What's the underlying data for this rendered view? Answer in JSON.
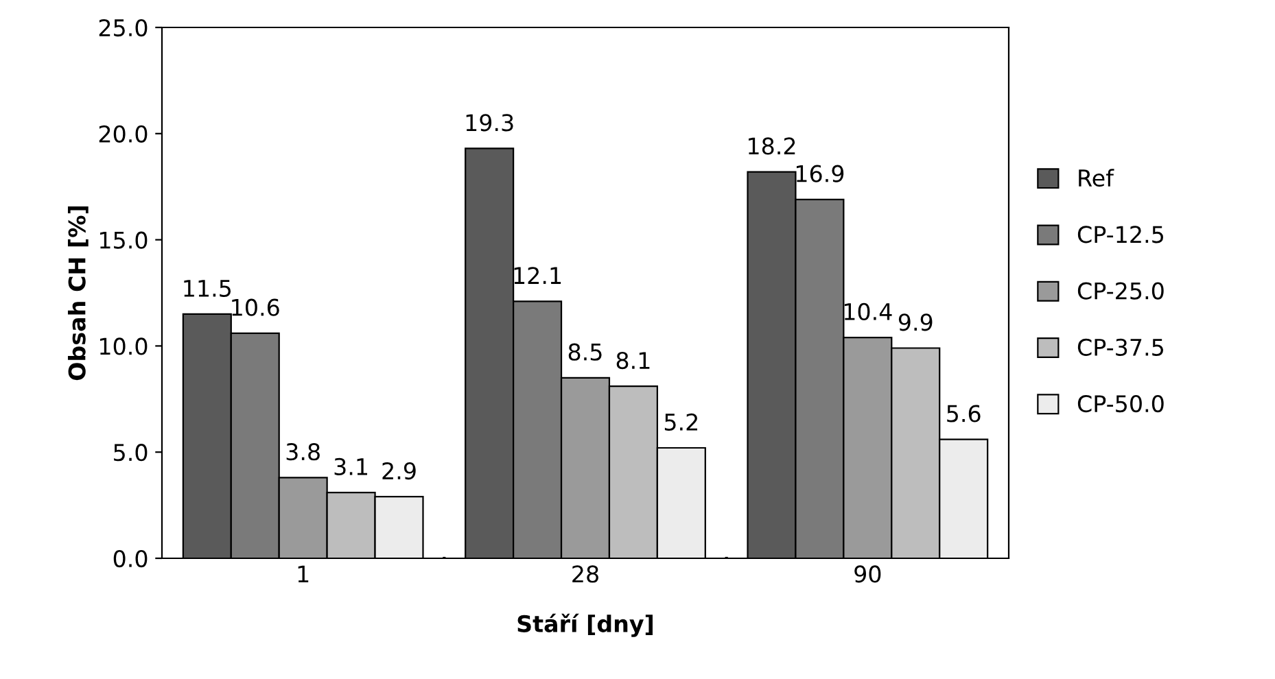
{
  "chart_data": {
    "type": "bar",
    "xlabel": "Stáří [dny]",
    "ylabel": "Obsah CH [%]",
    "categories": [
      "1",
      "28",
      "90"
    ],
    "series": [
      {
        "name": "Ref",
        "color": "#5a5a5a",
        "values": [
          11.5,
          19.3,
          18.2
        ]
      },
      {
        "name": "CP-12.5",
        "color": "#7a7a7a",
        "values": [
          10.6,
          12.1,
          16.9
        ]
      },
      {
        "name": "CP-25.0",
        "color": "#9a9a9a",
        "values": [
          3.8,
          8.5,
          10.4
        ]
      },
      {
        "name": "CP-37.5",
        "color": "#bdbdbd",
        "values": [
          3.1,
          8.1,
          9.9
        ]
      },
      {
        "name": "CP-50.0",
        "color": "#ececec",
        "values": [
          2.9,
          5.2,
          5.6
        ]
      }
    ],
    "ylim": [
      0,
      25
    ],
    "yticks": [
      {
        "value": 0,
        "label": "0.0"
      },
      {
        "value": 5,
        "label": "5.0"
      },
      {
        "value": 10,
        "label": "10.0"
      },
      {
        "value": 15,
        "label": "15.0"
      },
      {
        "value": 20,
        "label": "20.0"
      },
      {
        "value": 25,
        "label": "25.0"
      }
    ],
    "data_labels": true,
    "legend": "right",
    "grid": false
  }
}
